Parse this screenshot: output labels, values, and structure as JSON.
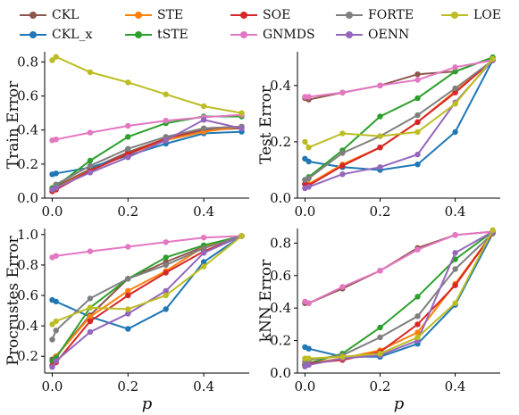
{
  "legend": [
    {
      "name": "CKL",
      "color": "#8c564b"
    },
    {
      "name": "CKL_x",
      "color": "#1f77b4"
    },
    {
      "name": "STE",
      "color": "#ff7f0e"
    },
    {
      "name": "tSTE",
      "color": "#2ca02c"
    },
    {
      "name": "SOE",
      "color": "#d62728"
    },
    {
      "name": "GNMDS",
      "color": "#e377c2"
    },
    {
      "name": "FORTE",
      "color": "#7f7f7f"
    },
    {
      "name": "OENN",
      "color": "#9467bd"
    },
    {
      "name": "LOE",
      "color": "#bcbd22"
    }
  ],
  "chart_data": [
    {
      "type": "line",
      "ylabel": "Train Error",
      "xlabel": "",
      "xlim": [
        -0.02,
        0.52
      ],
      "ylim": [
        0.0,
        0.86
      ],
      "xticks": [
        0.0,
        0.2,
        0.4
      ],
      "yticks": [
        0.0,
        0.2,
        0.4,
        0.6,
        0.8
      ],
      "x": [
        0.0,
        0.01,
        0.1,
        0.2,
        0.3,
        0.4,
        0.5
      ],
      "series": [
        {
          "name": "CKL",
          "color": "#8c564b",
          "values": [
            0.04,
            0.07,
            0.17,
            0.27,
            0.35,
            0.4,
            0.41
          ]
        },
        {
          "name": "CKL_x",
          "color": "#1f77b4",
          "values": [
            0.14,
            0.145,
            0.18,
            0.25,
            0.32,
            0.38,
            0.39
          ]
        },
        {
          "name": "STE",
          "color": "#ff7f0e",
          "values": [
            0.04,
            0.06,
            0.16,
            0.26,
            0.34,
            0.39,
            0.42
          ]
        },
        {
          "name": "tSTE",
          "color": "#2ca02c",
          "values": [
            0.06,
            0.07,
            0.22,
            0.36,
            0.44,
            0.48,
            0.48
          ]
        },
        {
          "name": "SOE",
          "color": "#d62728",
          "values": [
            0.04,
            0.05,
            0.16,
            0.26,
            0.35,
            0.41,
            0.42
          ]
        },
        {
          "name": "GNMDS",
          "color": "#e377c2",
          "values": [
            0.34,
            0.345,
            0.385,
            0.425,
            0.455,
            0.475,
            0.49
          ]
        },
        {
          "name": "FORTE",
          "color": "#7f7f7f",
          "values": [
            0.05,
            0.08,
            0.19,
            0.29,
            0.36,
            0.41,
            0.42
          ]
        },
        {
          "name": "OENN",
          "color": "#9467bd",
          "values": [
            0.05,
            0.06,
            0.15,
            0.24,
            0.34,
            0.46,
            0.41
          ]
        },
        {
          "name": "LOE",
          "color": "#bcbd22",
          "values": [
            0.81,
            0.83,
            0.74,
            0.68,
            0.61,
            0.54,
            0.5
          ]
        }
      ]
    },
    {
      "type": "line",
      "ylabel": "Test Error",
      "xlabel": "",
      "xlim": [
        -0.02,
        0.52
      ],
      "ylim": [
        0.0,
        0.52
      ],
      "xticks": [
        0.0,
        0.2,
        0.4
      ],
      "yticks": [
        0.0,
        0.2,
        0.4
      ],
      "x": [
        0.0,
        0.01,
        0.1,
        0.2,
        0.3,
        0.4,
        0.5
      ],
      "series": [
        {
          "name": "CKL",
          "color": "#8c564b",
          "values": [
            0.355,
            0.35,
            0.375,
            0.4,
            0.44,
            0.45,
            0.5
          ]
        },
        {
          "name": "CKL_x",
          "color": "#1f77b4",
          "values": [
            0.14,
            0.13,
            0.11,
            0.1,
            0.12,
            0.235,
            0.49
          ]
        },
        {
          "name": "STE",
          "color": "#ff7f0e",
          "values": [
            0.05,
            0.05,
            0.12,
            0.18,
            0.27,
            0.38,
            0.49
          ]
        },
        {
          "name": "tSTE",
          "color": "#2ca02c",
          "values": [
            0.065,
            0.075,
            0.17,
            0.29,
            0.355,
            0.45,
            0.5
          ]
        },
        {
          "name": "SOE",
          "color": "#d62728",
          "values": [
            0.05,
            0.045,
            0.115,
            0.18,
            0.27,
            0.375,
            0.49
          ]
        },
        {
          "name": "GNMDS",
          "color": "#e377c2",
          "values": [
            0.36,
            0.36,
            0.375,
            0.4,
            0.42,
            0.465,
            0.49
          ]
        },
        {
          "name": "FORTE",
          "color": "#7f7f7f",
          "values": [
            0.065,
            0.07,
            0.16,
            0.22,
            0.295,
            0.39,
            0.49
          ]
        },
        {
          "name": "OENN",
          "color": "#9467bd",
          "values": [
            0.035,
            0.04,
            0.085,
            0.11,
            0.155,
            0.34,
            0.49
          ]
        },
        {
          "name": "LOE",
          "color": "#bcbd22",
          "values": [
            0.2,
            0.18,
            0.23,
            0.22,
            0.235,
            0.335,
            0.495
          ]
        }
      ]
    },
    {
      "type": "line",
      "ylabel": "Procrustes Error",
      "xlabel": "p",
      "xlim": [
        -0.02,
        0.52
      ],
      "ylim": [
        0.09,
        1.04
      ],
      "xticks": [
        0.0,
        0.2,
        0.4
      ],
      "yticks": [
        0.2,
        0.4,
        0.6,
        0.8,
        1.0
      ],
      "x": [
        0.0,
        0.01,
        0.1,
        0.2,
        0.3,
        0.4,
        0.5
      ],
      "series": [
        {
          "name": "CKL",
          "color": "#8c564b",
          "values": [
            0.18,
            0.2,
            0.47,
            0.71,
            0.82,
            0.92,
            0.99
          ]
        },
        {
          "name": "CKL_x",
          "color": "#1f77b4",
          "values": [
            0.57,
            0.56,
            0.46,
            0.38,
            0.51,
            0.82,
            0.99
          ]
        },
        {
          "name": "STE",
          "color": "#ff7f0e",
          "values": [
            0.14,
            0.2,
            0.46,
            0.63,
            0.76,
            0.92,
            0.99
          ]
        },
        {
          "name": "tSTE",
          "color": "#2ca02c",
          "values": [
            0.17,
            0.19,
            0.52,
            0.71,
            0.85,
            0.93,
            0.99
          ]
        },
        {
          "name": "SOE",
          "color": "#d62728",
          "values": [
            0.14,
            0.16,
            0.43,
            0.6,
            0.75,
            0.89,
            0.99
          ]
        },
        {
          "name": "GNMDS",
          "color": "#e377c2",
          "values": [
            0.85,
            0.86,
            0.89,
            0.92,
            0.95,
            0.98,
            0.99
          ]
        },
        {
          "name": "FORTE",
          "color": "#7f7f7f",
          "values": [
            0.31,
            0.37,
            0.58,
            0.71,
            0.8,
            0.91,
            0.99
          ]
        },
        {
          "name": "OENN",
          "color": "#9467bd",
          "values": [
            0.13,
            0.17,
            0.36,
            0.48,
            0.63,
            0.88,
            0.99
          ]
        },
        {
          "name": "LOE",
          "color": "#bcbd22",
          "values": [
            0.41,
            0.43,
            0.52,
            0.51,
            0.6,
            0.79,
            0.99
          ]
        }
      ]
    },
    {
      "type": "line",
      "ylabel": "kNN Error",
      "xlabel": "p",
      "xlim": [
        -0.02,
        0.52
      ],
      "ylim": [
        0.0,
        0.89
      ],
      "xticks": [
        0.0,
        0.2,
        0.4
      ],
      "yticks": [
        0.0,
        0.2,
        0.4,
        0.6,
        0.8
      ],
      "x": [
        0.0,
        0.01,
        0.1,
        0.2,
        0.3,
        0.4,
        0.5
      ],
      "series": [
        {
          "name": "CKL",
          "color": "#8c564b",
          "values": [
            0.43,
            0.43,
            0.52,
            0.63,
            0.77,
            0.85,
            0.87
          ]
        },
        {
          "name": "CKL_x",
          "color": "#1f77b4",
          "values": [
            0.16,
            0.15,
            0.1,
            0.1,
            0.18,
            0.42,
            0.86
          ]
        },
        {
          "name": "STE",
          "color": "#ff7f0e",
          "values": [
            0.05,
            0.06,
            0.09,
            0.14,
            0.25,
            0.55,
            0.86
          ]
        },
        {
          "name": "tSTE",
          "color": "#2ca02c",
          "values": [
            0.05,
            0.06,
            0.12,
            0.28,
            0.47,
            0.7,
            0.87
          ]
        },
        {
          "name": "SOE",
          "color": "#d62728",
          "values": [
            0.05,
            0.06,
            0.08,
            0.13,
            0.3,
            0.54,
            0.86
          ]
        },
        {
          "name": "GNMDS",
          "color": "#e377c2",
          "values": [
            0.44,
            0.43,
            0.53,
            0.63,
            0.76,
            0.85,
            0.87
          ]
        },
        {
          "name": "FORTE",
          "color": "#7f7f7f",
          "values": [
            0.07,
            0.08,
            0.11,
            0.22,
            0.35,
            0.64,
            0.86
          ]
        },
        {
          "name": "OENN",
          "color": "#9467bd",
          "values": [
            0.04,
            0.05,
            0.09,
            0.11,
            0.2,
            0.74,
            0.87
          ]
        },
        {
          "name": "LOE",
          "color": "#bcbd22",
          "values": [
            0.09,
            0.09,
            0.1,
            0.12,
            0.22,
            0.43,
            0.88
          ]
        }
      ]
    }
  ]
}
